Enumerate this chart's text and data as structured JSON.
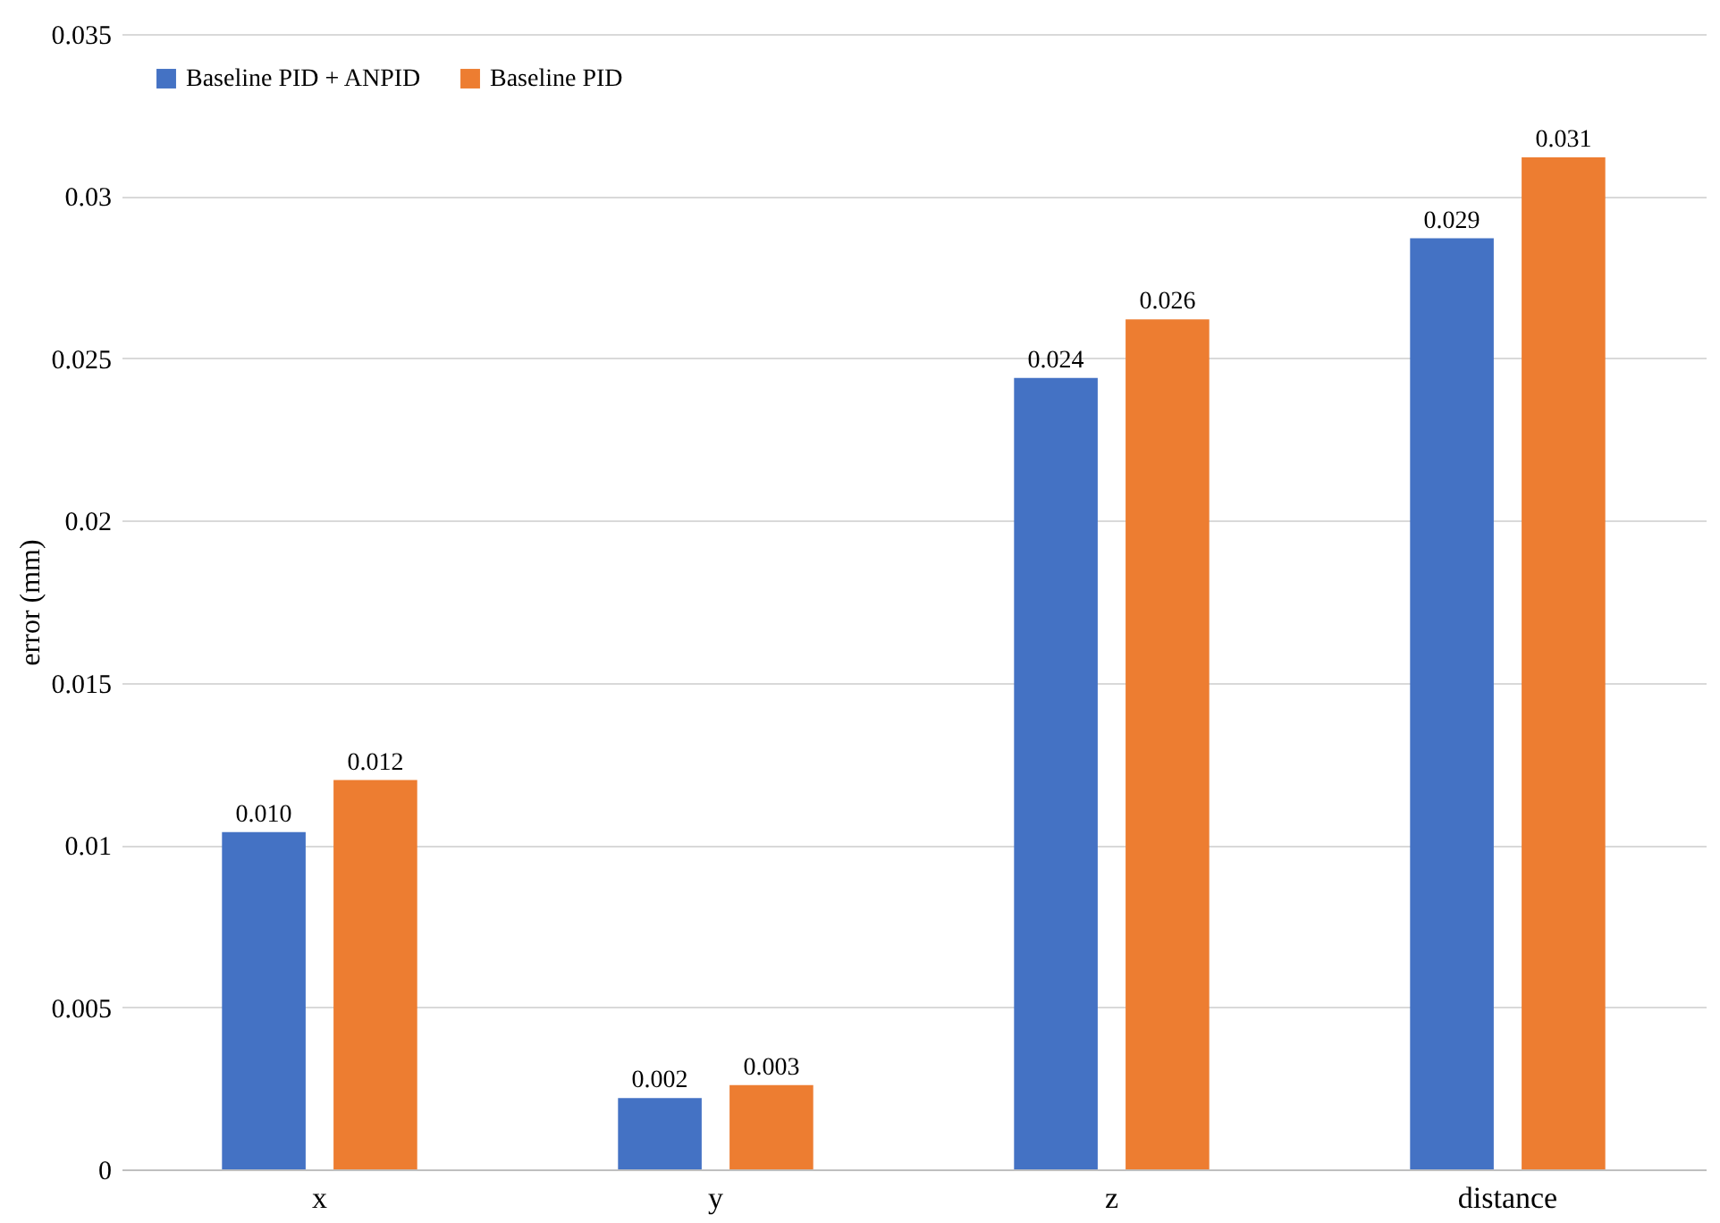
{
  "chart_data": {
    "type": "bar",
    "ylabel": "error (mm)",
    "categories": [
      "x",
      "y",
      "z",
      "distance"
    ],
    "series": [
      {
        "name": "Baseline PID + ANPID",
        "color": "#4472c4",
        "values": [
          0.0104,
          0.0022,
          0.0244,
          0.0287
        ],
        "value_labels": [
          "0.010",
          "0.002",
          "0.024",
          "0.029"
        ]
      },
      {
        "name": "Baseline PID",
        "color": "#ed7d31",
        "values": [
          0.012,
          0.0026,
          0.0262,
          0.0312
        ],
        "value_labels": [
          "0.012",
          "0.003",
          "0.026",
          "0.031"
        ]
      }
    ],
    "ylim": [
      0,
      0.035
    ],
    "yticks": [
      0,
      0.005,
      0.01,
      0.015,
      0.02,
      0.025,
      0.03,
      0.035
    ],
    "grid": "y",
    "legend": "top left"
  }
}
